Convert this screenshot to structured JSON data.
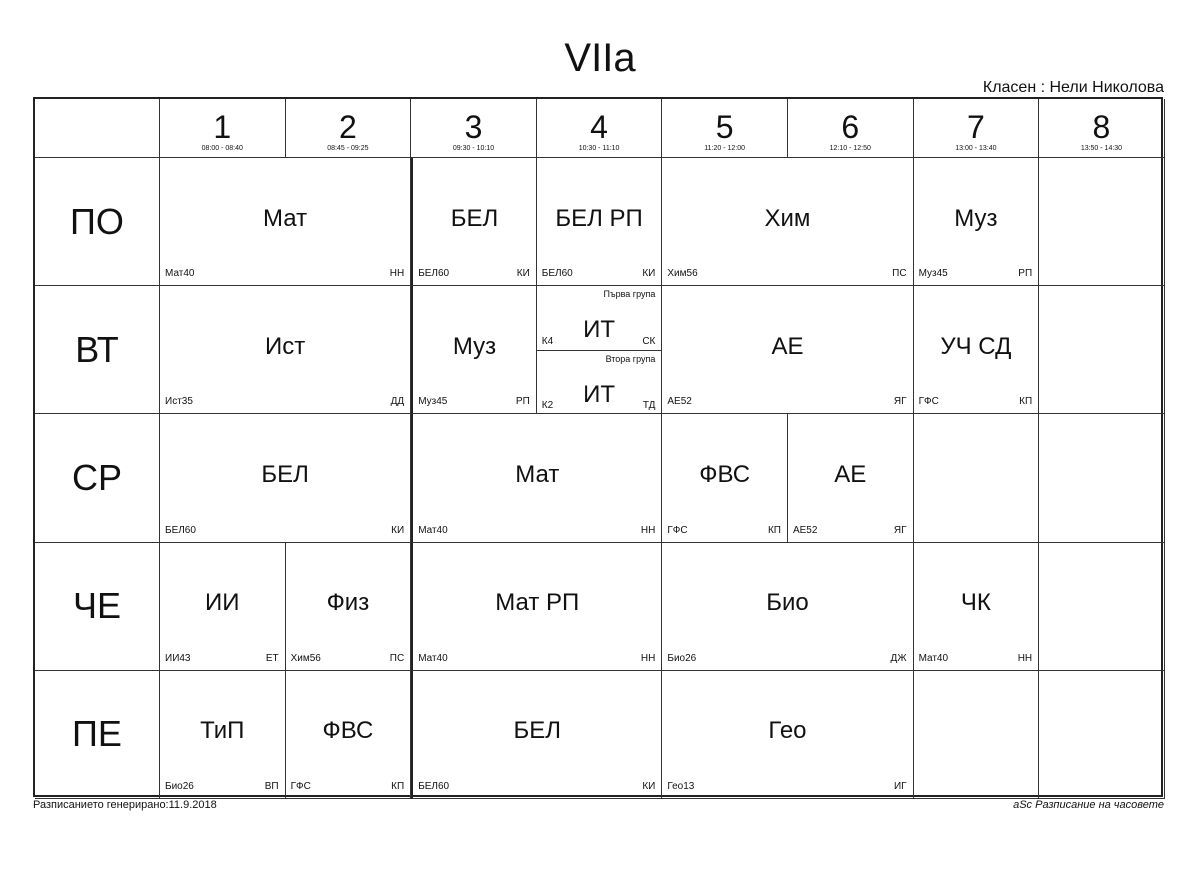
{
  "title": "VIIa",
  "class_teacher": "Класен : Нели Николова",
  "periods": [
    {
      "num": "1",
      "time": "08:00 - 08:40"
    },
    {
      "num": "2",
      "time": "08:45 - 09:25"
    },
    {
      "num": "3",
      "time": "09:30 - 10:10"
    },
    {
      "num": "4",
      "time": "10:30 - 11:10"
    },
    {
      "num": "5",
      "time": "11:20 - 12:00"
    },
    {
      "num": "6",
      "time": "12:10 - 12:50"
    },
    {
      "num": "7",
      "time": "13:00 - 13:40"
    },
    {
      "num": "8",
      "time": "13:50 - 14:30"
    }
  ],
  "days": [
    {
      "name": "ПО",
      "lessons": [
        {
          "periods": [
            1,
            2
          ],
          "subject": "Мат",
          "room": "Мат40",
          "teacher": "НН"
        },
        {
          "periods": [
            3
          ],
          "subject": "БЕЛ",
          "room": "БЕЛ60",
          "teacher": "КИ"
        },
        {
          "periods": [
            4
          ],
          "subject": "БЕЛ РП",
          "room": "БЕЛ60",
          "teacher": "КИ"
        },
        {
          "periods": [
            5,
            6
          ],
          "subject": "Хим",
          "room": "Хим56",
          "teacher": "ПС"
        },
        {
          "periods": [
            7
          ],
          "subject": "Муз",
          "room": "Муз45",
          "teacher": "РП"
        },
        {
          "periods": [
            8
          ]
        }
      ]
    },
    {
      "name": "ВТ",
      "lessons": [
        {
          "periods": [
            1,
            2
          ],
          "subject": "Ист",
          "room": "Ист35",
          "teacher": "ДД"
        },
        {
          "periods": [
            3
          ],
          "subject": "Муз",
          "room": "Муз45",
          "teacher": "РП"
        },
        {
          "periods": [
            4
          ],
          "groups": [
            {
              "group": "Първа група",
              "subject": "ИТ",
              "room": "К4",
              "teacher": "СК"
            },
            {
              "group": "Втора група",
              "subject": "ИТ",
              "room": "К2",
              "teacher": "ТД"
            }
          ]
        },
        {
          "periods": [
            5,
            6
          ],
          "subject": "АЕ",
          "room": "АЕ52",
          "teacher": "ЯГ"
        },
        {
          "periods": [
            7
          ],
          "subject": "УЧ СД",
          "room": "ГФС",
          "teacher": "КП"
        },
        {
          "periods": [
            8
          ]
        }
      ]
    },
    {
      "name": "СР",
      "lessons": [
        {
          "periods": [
            1,
            2
          ],
          "subject": "БЕЛ",
          "room": "БЕЛ60",
          "teacher": "КИ"
        },
        {
          "periods": [
            3,
            4
          ],
          "subject": "Мат",
          "room": "Мат40",
          "teacher": "НН"
        },
        {
          "periods": [
            5
          ],
          "subject": "ФВС",
          "room": "ГФС",
          "teacher": "КП"
        },
        {
          "periods": [
            6
          ],
          "subject": "АЕ",
          "room": "АЕ52",
          "teacher": "ЯГ"
        },
        {
          "periods": [
            7
          ]
        },
        {
          "periods": [
            8
          ]
        }
      ]
    },
    {
      "name": "ЧЕ",
      "lessons": [
        {
          "periods": [
            1
          ],
          "subject": "ИИ",
          "room": "ИИ43",
          "teacher": "ЕТ"
        },
        {
          "periods": [
            2
          ],
          "subject": "Физ",
          "room": "Хим56",
          "teacher": "ПС"
        },
        {
          "periods": [
            3,
            4
          ],
          "subject": "Мат РП",
          "room": "Мат40",
          "teacher": "НН"
        },
        {
          "periods": [
            5,
            6
          ],
          "subject": "Био",
          "room": "Био26",
          "teacher": "ДЖ"
        },
        {
          "periods": [
            7
          ],
          "subject": "ЧК",
          "room": "Мат40",
          "teacher": "НН"
        },
        {
          "periods": [
            8
          ]
        }
      ]
    },
    {
      "name": "ПЕ",
      "lessons": [
        {
          "periods": [
            1
          ],
          "subject": "ТиП",
          "room": "Био26",
          "teacher": "ВП"
        },
        {
          "periods": [
            2
          ],
          "subject": "ФВС",
          "room": "ГФС",
          "teacher": "КП"
        },
        {
          "periods": [
            3,
            4
          ],
          "subject": "БЕЛ",
          "room": "БЕЛ60",
          "teacher": "КИ"
        },
        {
          "periods": [
            5,
            6
          ],
          "subject": "Гео",
          "room": "Гео13",
          "teacher": "ИГ"
        },
        {
          "periods": [
            7
          ]
        },
        {
          "periods": [
            8
          ]
        }
      ]
    }
  ],
  "footer": {
    "generated": "Разписанието генерирано:11.9.2018",
    "software": "aSc Разписание на часовете"
  }
}
